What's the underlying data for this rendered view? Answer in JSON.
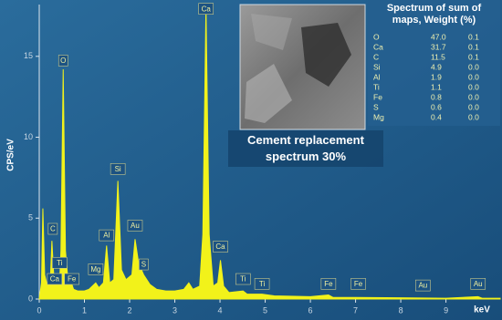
{
  "chart_data": {
    "type": "area",
    "y_label": "CPS/eV",
    "x_label": "keV",
    "xlim": [
      0,
      10.2
    ],
    "xticks": [
      0,
      1,
      2,
      3,
      4,
      5,
      6,
      7,
      8,
      9
    ],
    "ylim": [
      0,
      18.2
    ],
    "yticks": [
      0,
      5,
      10,
      15
    ],
    "color": "#f2f21a",
    "x": [
      0,
      0.05,
      0.08,
      0.12,
      0.18,
      0.25,
      0.28,
      0.32,
      0.38,
      0.45,
      0.48,
      0.53,
      0.58,
      0.64,
      0.7,
      0.76,
      0.85,
      1.0,
      1.1,
      1.25,
      1.32,
      1.42,
      1.49,
      1.56,
      1.65,
      1.74,
      1.82,
      1.92,
      2.05,
      2.12,
      2.2,
      2.31,
      2.45,
      2.6,
      2.8,
      3.0,
      3.2,
      3.31,
      3.4,
      3.55,
      3.62,
      3.69,
      3.76,
      3.85,
      3.95,
      4.01,
      4.08,
      4.2,
      4.51,
      4.6,
      4.93,
      5.2,
      6.0,
      6.4,
      6.5,
      7.0,
      8.0,
      9.0,
      9.71,
      9.8,
      10.2
    ],
    "values": [
      0,
      1.0,
      5.6,
      1.5,
      0.8,
      1.5,
      3.6,
      1.5,
      0.9,
      1.0,
      3.0,
      14.2,
      3.0,
      1.0,
      1.1,
      0.6,
      0.5,
      0.5,
      0.6,
      1.0,
      0.7,
      1.0,
      3.3,
      1.0,
      1.2,
      7.3,
      1.8,
      1.2,
      1.5,
      3.7,
      2.2,
      1.5,
      0.9,
      0.6,
      0.5,
      0.5,
      0.6,
      1.0,
      0.6,
      0.8,
      4.0,
      18.1,
      4.0,
      0.8,
      1.0,
      2.4,
      0.8,
      0.4,
      0.5,
      0.3,
      0.3,
      0.2,
      0.15,
      0.25,
      0.1,
      0.1,
      0.08,
      0.05,
      0.15,
      0.05,
      0.05
    ],
    "peak_labels": [
      {
        "text": "C",
        "x": 0.3,
        "y": 4.0
      },
      {
        "text": "Ti",
        "x": 0.45,
        "y": 1.9
      },
      {
        "text": "Ca",
        "x": 0.34,
        "y": 0.9
      },
      {
        "text": "Fe",
        "x": 0.72,
        "y": 0.9
      },
      {
        "text": "O",
        "x": 0.53,
        "y": 14.4
      },
      {
        "text": "Mg",
        "x": 1.25,
        "y": 1.5
      },
      {
        "text": "Al",
        "x": 1.49,
        "y": 3.6
      },
      {
        "text": "Si",
        "x": 1.74,
        "y": 7.7
      },
      {
        "text": "Au",
        "x": 2.12,
        "y": 4.2
      },
      {
        "text": "S",
        "x": 2.31,
        "y": 1.8
      },
      {
        "text": "Ca",
        "x": 3.69,
        "y": 17.6
      },
      {
        "text": "Ca",
        "x": 4.01,
        "y": 2.9
      },
      {
        "text": "Ti",
        "x": 4.51,
        "y": 0.9
      },
      {
        "text": "Ti",
        "x": 4.93,
        "y": 0.6
      },
      {
        "text": "Fe",
        "x": 6.4,
        "y": 0.6
      },
      {
        "text": "Fe",
        "x": 7.06,
        "y": 0.6
      },
      {
        "text": "Au",
        "x": 8.49,
        "y": 0.5
      },
      {
        "text": "Au",
        "x": 9.71,
        "y": 0.6
      }
    ]
  },
  "caption": "Cement replacement spectrum 30%",
  "table": {
    "title": "Spectrum of sum of maps, Weight (%)",
    "rows": [
      [
        "O",
        "47.0",
        "0.1"
      ],
      [
        "Ca",
        "31.7",
        "0.1"
      ],
      [
        "C",
        "11.5",
        "0.1"
      ],
      [
        "Si",
        "4.9",
        "0.0"
      ],
      [
        "Al",
        "1.9",
        "0.0"
      ],
      [
        "Ti",
        "1.1",
        "0.0"
      ],
      [
        "Fe",
        "0.8",
        "0.0"
      ],
      [
        "S",
        "0.6",
        "0.0"
      ],
      [
        "Mg",
        "0.4",
        "0.0"
      ]
    ]
  }
}
